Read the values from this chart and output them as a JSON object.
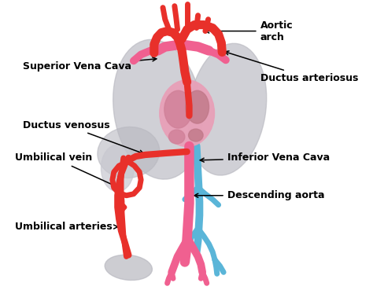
{
  "bg_color": "#ffffff",
  "red_color": "#e8302a",
  "pink_color": "#f06090",
  "blue_color": "#5ab5d8",
  "gray_color": "#b8b8c0",
  "heart_color": "#e8a0b8",
  "heart_dark": "#d08098",
  "font_size_label": 9,
  "labels": {
    "superior_vena_cava": "Superior Vena Cava",
    "aortic_arch": "Aortic\narch",
    "ductus_arteriosus": "Ductus arteriosus",
    "ductus_venosus": "Ductus venosus",
    "umbilical_vein": "Umbilical vein",
    "inferior_vena_cava": "Inferior Vena Cava",
    "descending_aorta": "Descending aorta",
    "umbilical_arteries": "Umbilical arteries"
  }
}
